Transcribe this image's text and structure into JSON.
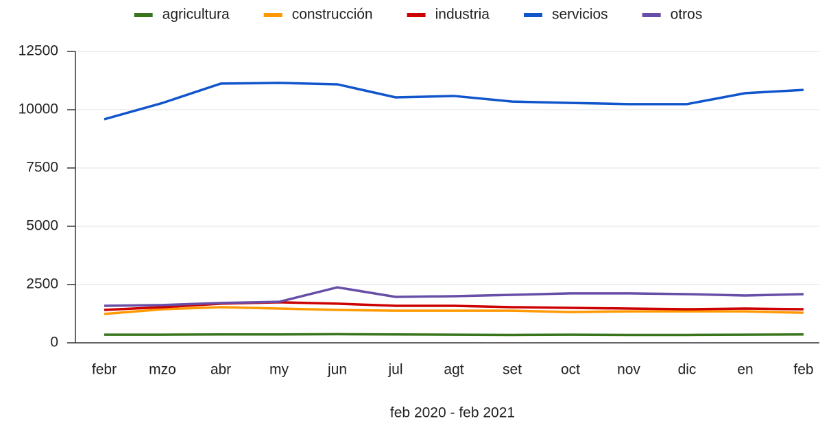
{
  "chart_data": {
    "type": "line",
    "x_label": "feb 2020 - feb 2021",
    "categories": [
      "febr",
      "mzo",
      "abr",
      "my",
      "jun",
      "jul",
      "agt",
      "set",
      "oct",
      "nov",
      "dic",
      "en",
      "feb"
    ],
    "series": [
      {
        "name": "agricultura",
        "color": "#38761d",
        "values": [
          350,
          350,
          360,
          360,
          370,
          360,
          350,
          340,
          350,
          340,
          340,
          350,
          360
        ]
      },
      {
        "name": "construcción",
        "color": "#ff9900",
        "values": [
          1240,
          1440,
          1530,
          1470,
          1410,
          1380,
          1380,
          1380,
          1320,
          1350,
          1350,
          1350,
          1290
        ]
      },
      {
        "name": "industria",
        "color": "#cc0000",
        "values": [
          1410,
          1530,
          1680,
          1740,
          1680,
          1590,
          1590,
          1530,
          1500,
          1470,
          1440,
          1470,
          1440
        ]
      },
      {
        "name": "servicios",
        "color": "#1155cc",
        "values": [
          9590,
          10290,
          11120,
          11150,
          11090,
          10530,
          10590,
          10350,
          10290,
          10240,
          10240,
          10710,
          10850
        ]
      },
      {
        "name": "otros",
        "color": "#674ea7",
        "values": [
          1590,
          1620,
          1710,
          1760,
          2380,
          1970,
          2000,
          2060,
          2120,
          2120,
          2090,
          2030,
          2090
        ]
      }
    ],
    "ylim": [
      0,
      12500
    ],
    "yticks": [
      0,
      2500,
      5000,
      7500,
      10000,
      12500
    ],
    "grid": true,
    "legend": "top"
  }
}
